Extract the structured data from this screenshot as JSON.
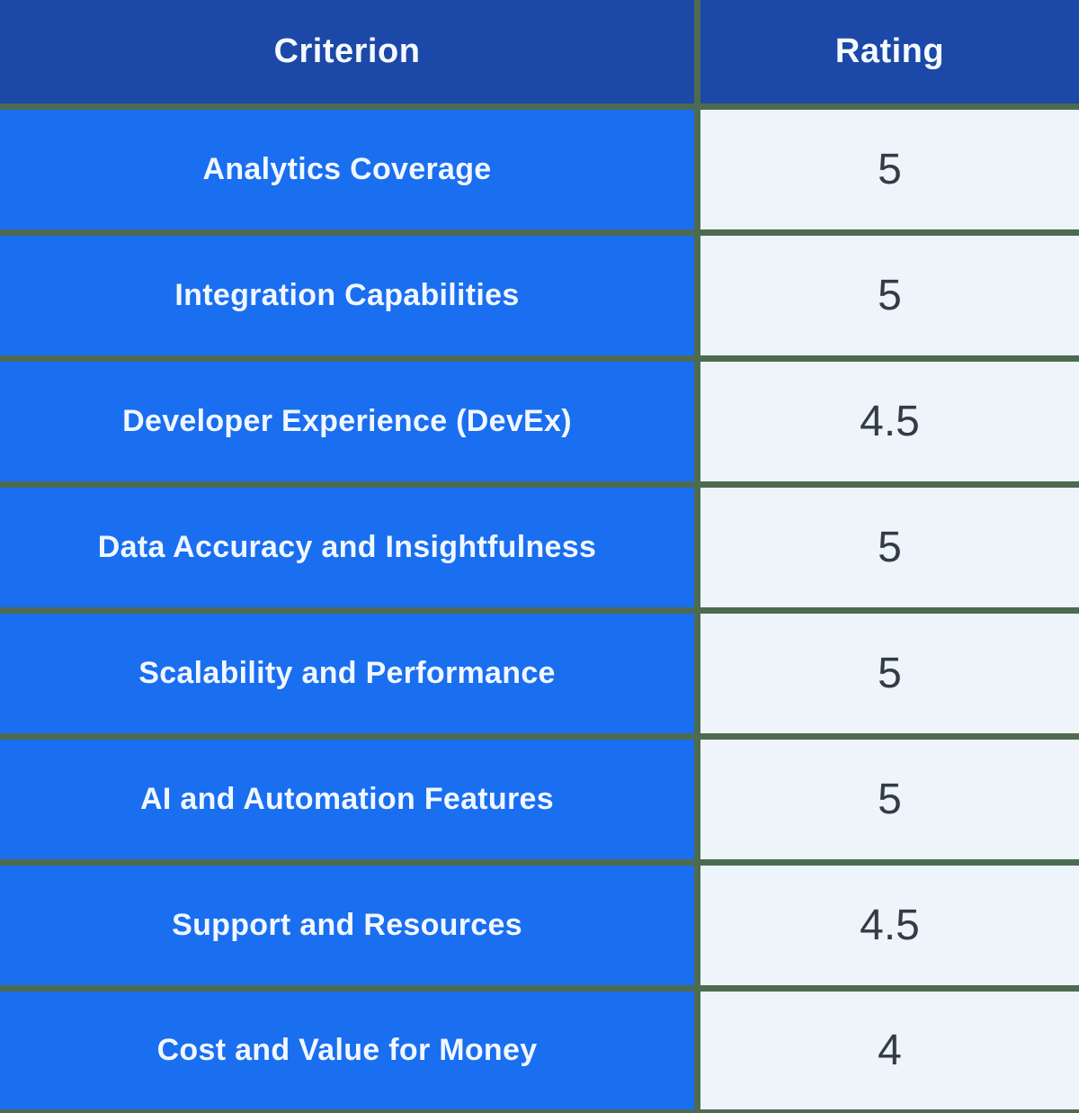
{
  "table": {
    "columns": [
      {
        "label": "Criterion"
      },
      {
        "label": "Rating"
      }
    ],
    "rows": [
      {
        "criterion": "Analytics Coverage",
        "rating": "5"
      },
      {
        "criterion": "Integration Capabilities",
        "rating": "5"
      },
      {
        "criterion": "Developer Experience (DevEx)",
        "rating": "4.5"
      },
      {
        "criterion": "Data Accuracy and Insightfulness",
        "rating": "5"
      },
      {
        "criterion": "Scalability and Performance",
        "rating": "5"
      },
      {
        "criterion": "AI and Automation Features",
        "rating": "5"
      },
      {
        "criterion": "Support and Resources",
        "rating": "4.5"
      },
      {
        "criterion": "Cost and Value for Money",
        "rating": "4"
      }
    ]
  },
  "colors": {
    "header_bg": "#1C48A8",
    "criterion_bg": "#1A6EF0",
    "rating_bg": "#EDF4FA",
    "grid_border": "#4D6B50",
    "header_text": "#F5FAFF",
    "criterion_text": "#F0F7FF",
    "rating_text": "#333B46"
  },
  "chart_data": {
    "type": "table",
    "title": "",
    "columns": [
      "Criterion",
      "Rating"
    ],
    "categories": [
      "Analytics Coverage",
      "Integration Capabilities",
      "Developer Experience (DevEx)",
      "Data Accuracy and Insightfulness",
      "Scalability and Performance",
      "AI and Automation Features",
      "Support and Resources",
      "Cost and Value for Money"
    ],
    "values": [
      5,
      5,
      4.5,
      5,
      5,
      5,
      4.5,
      4
    ],
    "value_range": [
      0,
      5
    ]
  }
}
